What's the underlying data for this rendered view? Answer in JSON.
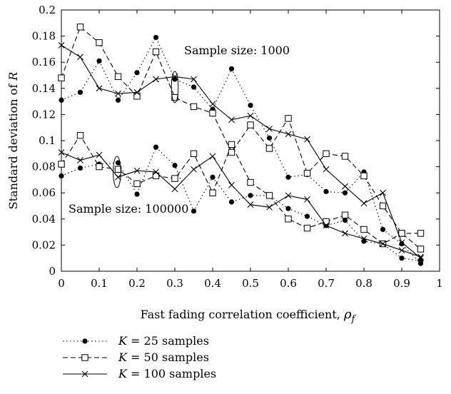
{
  "chart_data": {
    "type": "line",
    "title": "",
    "xlabel_prefix": "Fast fading correlation coefficient, ",
    "xlabel_symbol": "ρ",
    "xlabel_subscript": "f",
    "ylabel_prefix": "Standard deviation of ",
    "ylabel_symbol": "R",
    "xlim": [
      0,
      1
    ],
    "ylim": [
      0,
      0.2
    ],
    "xticks": [
      0,
      0.1,
      0.2,
      0.3,
      0.4,
      0.5,
      0.6,
      0.7,
      0.8,
      0.9,
      1
    ],
    "yticks": [
      0,
      0.02,
      0.04,
      0.06,
      0.08,
      0.1,
      0.12,
      0.14,
      0.16,
      0.18,
      0.2
    ],
    "xtick_labels": [
      "0",
      "0.1",
      "0.2",
      "0.3",
      "0.4",
      "0.5",
      "0.6",
      "0.7",
      "0.8",
      "0.9",
      "1"
    ],
    "ytick_labels": [
      "0",
      "0.02",
      "0.04",
      "0.06",
      "0.08",
      "0.1",
      "0.12",
      "0.14",
      "0.16",
      "0.18",
      "0.2"
    ],
    "grid": false,
    "legend_position": "below-left",
    "x": [
      0,
      0.05,
      0.1,
      0.15,
      0.2,
      0.25,
      0.3,
      0.35,
      0.4,
      0.45,
      0.5,
      0.55,
      0.6,
      0.65,
      0.7,
      0.75,
      0.8,
      0.85,
      0.9,
      0.95
    ],
    "series": [
      {
        "legend_symbol": "K",
        "legend_text": " = 25 samples",
        "line_style": "dotted",
        "marker": "filled-circle",
        "groups": [
          {
            "label": "Sample size: 1000",
            "values": [
              0.131,
              0.137,
              0.161,
              0.131,
              0.152,
              0.179,
              0.147,
              0.141,
              0.124,
              0.155,
              0.127,
              0.102,
              0.072,
              0.074,
              0.061,
              0.06,
              0.076,
              0.032,
              0.021,
              0.006
            ]
          },
          {
            "label": "Sample size: 100000",
            "values": [
              0.073,
              0.079,
              0.082,
              0.083,
              0.059,
              0.095,
              0.081,
              0.046,
              0.072,
              0.053,
              0.058,
              0.058,
              0.048,
              0.042,
              0.035,
              0.039,
              0.023,
              0.021,
              0.01,
              0.008
            ]
          }
        ]
      },
      {
        "legend_symbol": "K",
        "legend_text": " = 50 samples",
        "line_style": "dashed",
        "marker": "open-square",
        "groups": [
          {
            "label": "Sample size: 1000",
            "values": [
              0.148,
              0.187,
              0.175,
              0.149,
              0.134,
              0.168,
              0.133,
              0.126,
              0.121,
              0.091,
              0.112,
              0.094,
              0.117,
              0.075,
              0.09,
              0.088,
              0.073,
              0.05,
              0.029,
              0.017
            ]
          },
          {
            "label": "Sample size: 100000",
            "values": [
              0.082,
              0.104,
              0.08,
              0.078,
              0.067,
              0.073,
              0.071,
              0.09,
              0.06,
              0.097,
              0.068,
              0.058,
              0.04,
              0.033,
              0.038,
              0.043,
              0.032,
              0.021,
              0.029,
              0.029
            ]
          }
        ]
      },
      {
        "legend_symbol": "K",
        "legend_text": " = 100 samples",
        "line_style": "solid",
        "marker": "x",
        "groups": [
          {
            "label": "Sample size: 1000",
            "values": [
              0.173,
              0.164,
              0.14,
              0.136,
              0.137,
              0.147,
              0.149,
              0.147,
              0.128,
              0.116,
              0.119,
              0.109,
              0.105,
              0.101,
              0.078,
              0.065,
              0.052,
              0.06,
              0.022,
              0.01
            ]
          },
          {
            "label": "Sample size: 100000",
            "values": [
              0.091,
              0.085,
              0.089,
              0.072,
              0.077,
              0.076,
              0.063,
              0.078,
              0.088,
              0.066,
              0.051,
              0.049,
              0.058,
              0.055,
              0.035,
              0.029,
              0.025,
              0.021,
              0.016,
              0.011
            ]
          }
        ]
      }
    ],
    "annotations": [
      {
        "text": "Sample size: 1000",
        "ellipse_center": [
          0.3,
          0.141
        ],
        "ellipse_half_range": [
          0.009,
          0.012
        ]
      },
      {
        "text": "Sample size: 100000",
        "ellipse_center": [
          0.147,
          0.076
        ],
        "ellipse_half_range": [
          0.01,
          0.012
        ]
      }
    ]
  }
}
